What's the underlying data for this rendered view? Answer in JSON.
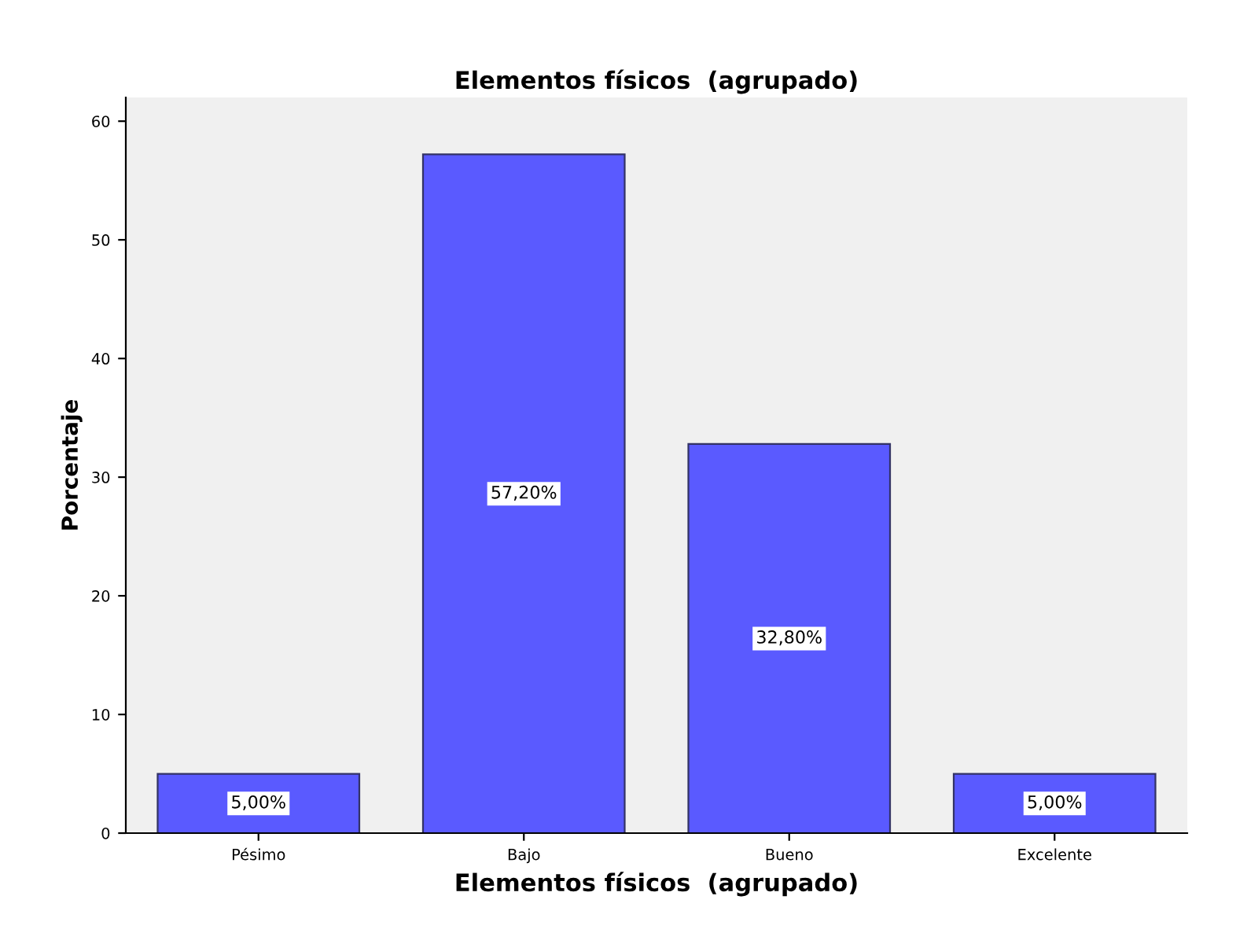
{
  "chart_data": {
    "type": "bar",
    "title": "Elementos físicos  (agrupado)",
    "xlabel": "Elementos físicos  (agrupado)",
    "ylabel": "Porcentaje",
    "categories": [
      "Pésimo",
      "Bajo",
      "Bueno",
      "Excelente"
    ],
    "values": [
      5.0,
      57.2,
      32.8,
      5.0
    ],
    "value_labels": [
      "5,00%",
      "57,20%",
      "32,80%",
      "5,00%"
    ],
    "color": "#5a5aff",
    "ylim": [
      0,
      62
    ],
    "yticks": [
      0,
      10,
      20,
      30,
      40,
      50,
      60
    ],
    "grid": false,
    "legend": false
  }
}
